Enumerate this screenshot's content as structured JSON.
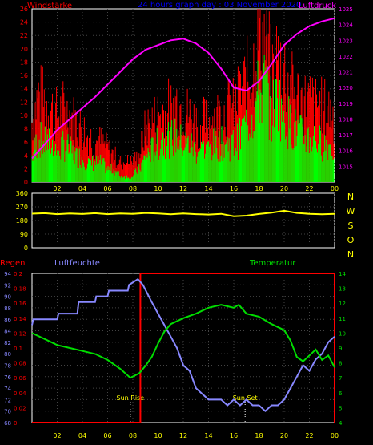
{
  "chart_data": [
    {
      "type": "line",
      "title": "24 hours graph day : 03 November 2020",
      "ylabel_left": "Windstärke",
      "ylabel_right": "Luftdruck",
      "x_tick_labels": [
        "02",
        "04",
        "06",
        "08",
        "10",
        "12",
        "14",
        "16",
        "18",
        "20",
        "22",
        "00"
      ],
      "x_range": [
        0,
        24
      ],
      "wind": {
        "ylim": [
          0,
          26
        ],
        "y_ticks": [
          0,
          2,
          4,
          6,
          8,
          10,
          12,
          14,
          16,
          18,
          20,
          22,
          24,
          26
        ],
        "colors": {
          "gust": "#ff0000",
          "speed": "#00ff00"
        },
        "series": [
          {
            "x": 0,
            "gust": 9,
            "speed": 4
          },
          {
            "x": 0.5,
            "gust": 13,
            "speed": 7
          },
          {
            "x": 1,
            "gust": 12,
            "speed": 6
          },
          {
            "x": 1.5,
            "gust": 11,
            "speed": 6
          },
          {
            "x": 2,
            "gust": 10,
            "speed": 5
          },
          {
            "x": 2.5,
            "gust": 11,
            "speed": 6
          },
          {
            "x": 3,
            "gust": 10,
            "speed": 5
          },
          {
            "x": 3.5,
            "gust": 9,
            "speed": 4
          },
          {
            "x": 4,
            "gust": 8,
            "speed": 4
          },
          {
            "x": 4.5,
            "gust": 7,
            "speed": 3
          },
          {
            "x": 5,
            "gust": 6,
            "speed": 3
          },
          {
            "x": 5.5,
            "gust": 6,
            "speed": 3
          },
          {
            "x": 6,
            "gust": 5,
            "speed": 2
          },
          {
            "x": 6.5,
            "gust": 4,
            "speed": 2
          },
          {
            "x": 7,
            "gust": 3,
            "speed": 1
          },
          {
            "x": 7.5,
            "gust": 3,
            "speed": 1
          },
          {
            "x": 8,
            "gust": 3,
            "speed": 1
          },
          {
            "x": 8.5,
            "gust": 4,
            "speed": 2
          },
          {
            "x": 9,
            "gust": 8,
            "speed": 4
          },
          {
            "x": 9.5,
            "gust": 9,
            "speed": 5
          },
          {
            "x": 10,
            "gust": 10,
            "speed": 6
          },
          {
            "x": 10.5,
            "gust": 11,
            "speed": 7
          },
          {
            "x": 11,
            "gust": 11,
            "speed": 7
          },
          {
            "x": 11.5,
            "gust": 12,
            "speed": 7
          },
          {
            "x": 12,
            "gust": 11,
            "speed": 6
          },
          {
            "x": 12.5,
            "gust": 10,
            "speed": 6
          },
          {
            "x": 13,
            "gust": 9,
            "speed": 5
          },
          {
            "x": 13.5,
            "gust": 9,
            "speed": 5
          },
          {
            "x": 14,
            "gust": 9,
            "speed": 5
          },
          {
            "x": 14.5,
            "gust": 10,
            "speed": 6
          },
          {
            "x": 15,
            "gust": 10,
            "speed": 6
          },
          {
            "x": 15.5,
            "gust": 11,
            "speed": 6
          },
          {
            "x": 16,
            "gust": 11,
            "speed": 6
          },
          {
            "x": 16.5,
            "gust": 13,
            "speed": 7
          },
          {
            "x": 17,
            "gust": 15,
            "speed": 9
          },
          {
            "x": 17.5,
            "gust": 17,
            "speed": 11
          },
          {
            "x": 18,
            "gust": 22,
            "speed": 14
          },
          {
            "x": 18.5,
            "gust": 21,
            "speed": 15
          },
          {
            "x": 19,
            "gust": 16,
            "speed": 11
          },
          {
            "x": 19.5,
            "gust": 19,
            "speed": 13
          },
          {
            "x": 20,
            "gust": 17,
            "speed": 11
          },
          {
            "x": 20.5,
            "gust": 14,
            "speed": 9
          },
          {
            "x": 21,
            "gust": 13,
            "speed": 8
          },
          {
            "x": 21.5,
            "gust": 12,
            "speed": 7
          },
          {
            "x": 22,
            "gust": 12,
            "speed": 7
          },
          {
            "x": 22.5,
            "gust": 12,
            "speed": 7
          },
          {
            "x": 23,
            "gust": 11,
            "speed": 6
          },
          {
            "x": 23.5,
            "gust": 11,
            "speed": 6
          },
          {
            "x": 24,
            "gust": 10,
            "speed": 5
          }
        ]
      },
      "pressure": {
        "ylim": [
          1014,
          1025
        ],
        "y_ticks": [
          1015,
          1016,
          1017,
          1018,
          1019,
          1020,
          1021,
          1022,
          1023,
          1024,
          1025
        ],
        "color": "#ff00ff",
        "points": [
          [
            0,
            1015.5
          ],
          [
            1,
            1016.4
          ],
          [
            2,
            1017.3
          ],
          [
            3,
            1018.0
          ],
          [
            4,
            1018.7
          ],
          [
            5,
            1019.4
          ],
          [
            6,
            1020.2
          ],
          [
            7,
            1021.0
          ],
          [
            8,
            1021.8
          ],
          [
            9,
            1022.4
          ],
          [
            10,
            1022.7
          ],
          [
            11,
            1023.0
          ],
          [
            12,
            1023.1
          ],
          [
            13,
            1022.8
          ],
          [
            14,
            1022.2
          ],
          [
            15,
            1021.2
          ],
          [
            16,
            1020.0
          ],
          [
            17,
            1019.8
          ],
          [
            18,
            1020.4
          ],
          [
            19,
            1021.5
          ],
          [
            20,
            1022.7
          ],
          [
            21,
            1023.4
          ],
          [
            22,
            1023.9
          ],
          [
            23,
            1024.2
          ],
          [
            24,
            1024.4
          ]
        ]
      }
    },
    {
      "type": "line",
      "right_labels": [
        "N",
        "W",
        "S",
        "O",
        "N"
      ],
      "ylim": [
        0,
        360
      ],
      "y_ticks": [
        0,
        90,
        180,
        270,
        360
      ],
      "color": "#ffff00",
      "x_tick_labels": [
        "02",
        "04",
        "06",
        "08",
        "10",
        "12",
        "14",
        "16",
        "18",
        "20",
        "22",
        "00"
      ],
      "points": [
        [
          0,
          225
        ],
        [
          1,
          228
        ],
        [
          2,
          222
        ],
        [
          3,
          226
        ],
        [
          4,
          223
        ],
        [
          5,
          228
        ],
        [
          6,
          222
        ],
        [
          7,
          226
        ],
        [
          8,
          224
        ],
        [
          9,
          230
        ],
        [
          10,
          226
        ],
        [
          11,
          221
        ],
        [
          12,
          226
        ],
        [
          13,
          222
        ],
        [
          14,
          219
        ],
        [
          15,
          224
        ],
        [
          16,
          208
        ],
        [
          17,
          212
        ],
        [
          18,
          223
        ],
        [
          19,
          232
        ],
        [
          20,
          244
        ],
        [
          21,
          230
        ],
        [
          22,
          224
        ],
        [
          23,
          221
        ],
        [
          24,
          224
        ]
      ]
    },
    {
      "type": "line",
      "ylabel_left": "Regen",
      "ylabel_mid": "Luftfeuchte",
      "ylabel_right": "Temperatur",
      "x_tick_labels": [
        "02",
        "04",
        "06",
        "08",
        "10",
        "12",
        "14",
        "16",
        "18",
        "20",
        "22",
        "00"
      ],
      "x_range": [
        0,
        24
      ],
      "annotations": [
        {
          "label": "Sun Rise",
          "x": 7.8
        },
        {
          "label": "Sun Set",
          "x": 16.9
        }
      ],
      "rain": {
        "ylim": [
          0,
          0.2
        ],
        "y_ticks": [
          "0",
          "0.02",
          "0.04",
          "0.06",
          "0.08",
          "0.1",
          "0.12",
          "0.14",
          "0.16",
          "0.18",
          "0.2"
        ],
        "color": "#ff0000",
        "points": [
          [
            0,
            0
          ],
          [
            8.6,
            0
          ],
          [
            8.6,
            0.2
          ],
          [
            24,
            0.2
          ],
          [
            24,
            0
          ]
        ]
      },
      "humidity": {
        "ylim": [
          68,
          94
        ],
        "y_ticks": [
          68,
          70,
          72,
          74,
          76,
          78,
          80,
          82,
          84,
          86,
          88,
          90,
          92,
          94
        ],
        "color": "#8888ff",
        "points": [
          [
            0,
            85
          ],
          [
            0.1,
            86
          ],
          [
            2,
            86
          ],
          [
            2.1,
            87
          ],
          [
            3.6,
            87
          ],
          [
            3.7,
            89
          ],
          [
            5,
            89
          ],
          [
            5.1,
            90
          ],
          [
            6,
            90
          ],
          [
            6.1,
            91
          ],
          [
            7.6,
            91
          ],
          [
            7.7,
            92
          ],
          [
            8.4,
            93
          ],
          [
            8.8,
            92
          ],
          [
            9.5,
            89
          ],
          [
            10,
            87
          ],
          [
            10.5,
            85
          ],
          [
            11,
            83
          ],
          [
            11.5,
            81
          ],
          [
            12,
            78
          ],
          [
            12.5,
            77
          ],
          [
            13,
            74
          ],
          [
            13.5,
            73
          ],
          [
            14,
            72
          ],
          [
            14.5,
            72
          ],
          [
            15,
            72
          ],
          [
            15.5,
            71
          ],
          [
            16,
            72
          ],
          [
            16.5,
            71
          ],
          [
            17,
            72
          ],
          [
            17.5,
            71
          ],
          [
            18,
            71
          ],
          [
            18.5,
            70
          ],
          [
            19,
            71
          ],
          [
            19.5,
            71
          ],
          [
            20,
            72
          ],
          [
            20.5,
            74
          ],
          [
            21,
            76
          ],
          [
            21.5,
            78
          ],
          [
            22,
            77
          ],
          [
            22.5,
            79
          ],
          [
            23,
            80
          ],
          [
            23.5,
            82
          ],
          [
            24,
            83
          ]
        ]
      },
      "temperature": {
        "ylim": [
          4,
          14
        ],
        "y_ticks": [
          4,
          5,
          6,
          7,
          8,
          9,
          10,
          11,
          12,
          13,
          14
        ],
        "color": "#00dd00",
        "points": [
          [
            0,
            10.0
          ],
          [
            1,
            9.6
          ],
          [
            2,
            9.2
          ],
          [
            3,
            9.0
          ],
          [
            4,
            8.8
          ],
          [
            5,
            8.6
          ],
          [
            6,
            8.2
          ],
          [
            7,
            7.6
          ],
          [
            7.8,
            7.0
          ],
          [
            8.5,
            7.3
          ],
          [
            9,
            7.8
          ],
          [
            9.5,
            8.4
          ],
          [
            10,
            9.3
          ],
          [
            10.5,
            10.1
          ],
          [
            11,
            10.6
          ],
          [
            12,
            11.0
          ],
          [
            13,
            11.3
          ],
          [
            14,
            11.7
          ],
          [
            15,
            11.9
          ],
          [
            16,
            11.7
          ],
          [
            16.4,
            11.9
          ],
          [
            17,
            11.3
          ],
          [
            18,
            11.1
          ],
          [
            19,
            10.6
          ],
          [
            20,
            10.2
          ],
          [
            20.5,
            9.5
          ],
          [
            21,
            8.4
          ],
          [
            21.5,
            8.1
          ],
          [
            22,
            8.5
          ],
          [
            22.5,
            8.9
          ],
          [
            23,
            8.2
          ],
          [
            23.5,
            8.5
          ],
          [
            24,
            7.7
          ]
        ]
      }
    }
  ]
}
